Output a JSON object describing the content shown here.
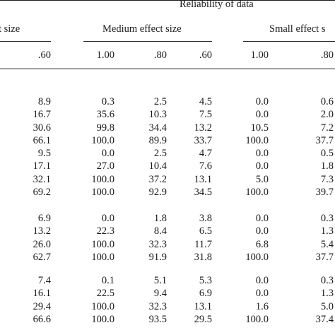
{
  "header": {
    "reliability": "Reliability of data",
    "large_effect": "t size",
    "medium_effect": "Medium effect size",
    "small_effect": "Small effect s"
  },
  "columns": [
    ".60",
    "1.00",
    ".80",
    ".60",
    "1.00",
    ".80"
  ],
  "groups": [
    [
      [
        "8.9",
        "0.3",
        "2.5",
        "4.5",
        "0.0",
        "0.6"
      ],
      [
        "16.7",
        "35.6",
        "10.3",
        "7.5",
        "0.0",
        "2.0"
      ],
      [
        "30.6",
        "99.8",
        "34.4",
        "13.2",
        "10.5",
        "7.2"
      ],
      [
        "66.1",
        "100.0",
        "89.9",
        "33.7",
        "100.0",
        "37.7"
      ]
    ],
    [
      [
        "9.5",
        "0.0",
        "2.5",
        "4.7",
        "0.0",
        "0.5"
      ],
      [
        "17.1",
        "27.0",
        "10.4",
        "7.6",
        "0.0",
        "1.8"
      ],
      [
        "32.1",
        "100.0",
        "37.2",
        "13.1",
        "5.0",
        "7.3"
      ],
      [
        "69.2",
        "100.0",
        "92.9",
        "34.5",
        "100.0",
        "39.7"
      ]
    ],
    [
      [
        "6.9",
        "0.0",
        "1.8",
        "3.8",
        "0.0",
        "0.3"
      ],
      [
        "13.2",
        "22.3",
        "8.4",
        "6.5",
        "0.0",
        "1.3"
      ],
      [
        "26.0",
        "100.0",
        "32.3",
        "11.7",
        "6.8",
        "5.4"
      ],
      [
        "62.7",
        "100.0",
        "91.9",
        "31.8",
        "100.0",
        "37.7"
      ]
    ],
    [
      [
        "7.4",
        "0.1",
        "5.1",
        "5.3",
        "0.0",
        "0.3"
      ],
      [
        "16.1",
        "22.5",
        "9.4",
        "6.9",
        "0.0",
        "1.3"
      ],
      [
        "29.4",
        "100.0",
        "32.3",
        "13.1",
        "1.6",
        "5.0"
      ],
      [
        "66.6",
        "100.0",
        "93.5",
        "29.5",
        "100.0",
        "37.4"
      ]
    ]
  ]
}
